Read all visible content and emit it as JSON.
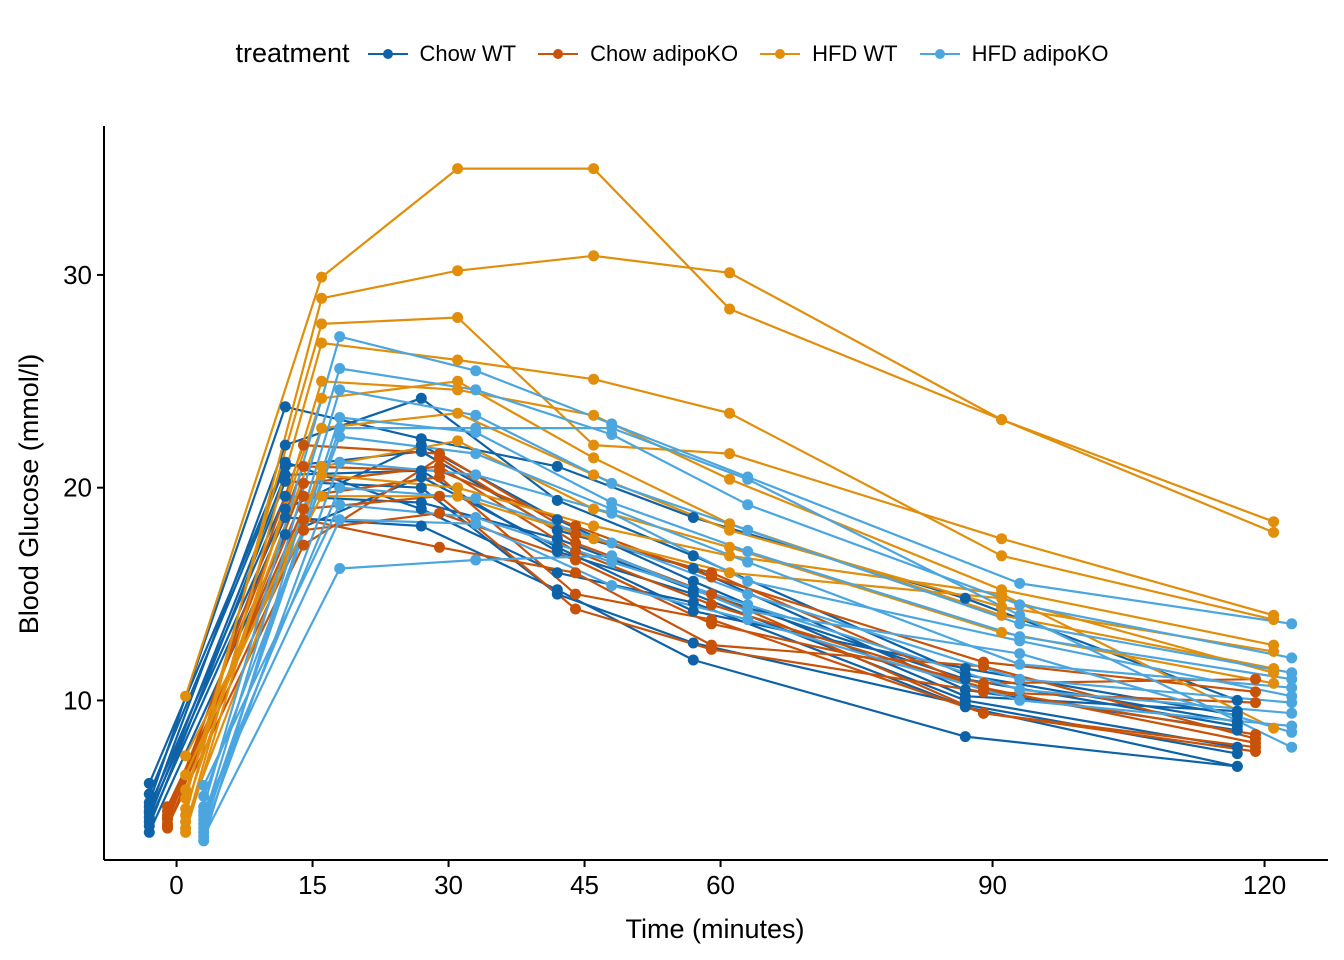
{
  "chart_data": {
    "type": "line",
    "xlabel": "Time (minutes)",
    "ylabel": "Blood Glucose (mmol/l)",
    "x_ticks": [
      0,
      15,
      30,
      45,
      60,
      90,
      120
    ],
    "y_ticks": [
      10,
      20,
      30
    ],
    "xlim": [
      -8,
      127
    ],
    "ylim": [
      2.5,
      37
    ],
    "legend": {
      "title": "treatment",
      "position": "top",
      "entries": [
        {
          "key": "chow_wt",
          "label": "Chow WT",
          "color": "#0E62A8"
        },
        {
          "key": "chow_ko",
          "label": "Chow adipoKO",
          "color": "#C95209"
        },
        {
          "key": "hfd_wt",
          "label": "HFD WT",
          "color": "#E08E0B"
        },
        {
          "key": "hfd_ko",
          "label": "HFD adipoKO",
          "color": "#4BA6E0"
        }
      ]
    },
    "x_dodge": {
      "chow_wt": -3,
      "chow_ko": -1,
      "hfd_wt": 1,
      "hfd_ko": 3
    },
    "time_points": [
      0,
      15,
      30,
      45,
      60,
      90,
      120
    ],
    "series": [
      {
        "group": "chow_wt",
        "values": [
          5.2,
          23.8,
          22.3,
          21.0,
          18.6,
          14.8,
          10.0
        ]
      },
      {
        "group": "chow_wt",
        "values": [
          4.8,
          22.0,
          24.2,
          19.4,
          16.8,
          11.2,
          9.0
        ]
      },
      {
        "group": "chow_wt",
        "values": [
          5.6,
          21.0,
          21.7,
          18.0,
          16.2,
          10.5,
          8.6
        ]
      },
      {
        "group": "chow_wt",
        "values": [
          4.5,
          20.6,
          20.8,
          17.0,
          15.0,
          10.0,
          7.8
        ]
      },
      {
        "group": "chow_wt",
        "values": [
          4.1,
          20.3,
          20.0,
          15.0,
          12.7,
          9.8,
          7.5
        ]
      },
      {
        "group": "chow_wt",
        "values": [
          5.0,
          19.6,
          19.3,
          17.6,
          15.2,
          11.0,
          8.8
        ]
      },
      {
        "group": "chow_wt",
        "values": [
          4.3,
          18.6,
          18.2,
          15.2,
          11.9,
          8.3,
          6.9
        ]
      },
      {
        "group": "chow_wt",
        "values": [
          3.8,
          17.8,
          20.5,
          17.2,
          14.2,
          11.5,
          9.3
        ]
      },
      {
        "group": "chow_wt",
        "values": [
          6.1,
          21.2,
          19.0,
          16.0,
          14.6,
          9.7,
          6.9
        ]
      },
      {
        "group": "chow_wt",
        "values": [
          4.7,
          19.0,
          22.0,
          18.5,
          15.6,
          10.2,
          9.5
        ]
      },
      {
        "group": "chow_ko",
        "values": [
          4.2,
          22.0,
          21.6,
          17.8,
          16.0,
          10.5,
          8.4
        ]
      },
      {
        "group": "chow_ko",
        "values": [
          4.6,
          21.0,
          20.8,
          18.2,
          15.8,
          11.8,
          10.4
        ]
      },
      {
        "group": "chow_ko",
        "values": [
          4.0,
          20.2,
          21.0,
          17.0,
          14.5,
          10.6,
          8.0
        ]
      },
      {
        "group": "chow_ko",
        "values": [
          4.4,
          19.6,
          20.5,
          15.0,
          13.8,
          9.4,
          7.8
        ]
      },
      {
        "group": "chow_ko",
        "values": [
          4.8,
          19.0,
          19.6,
          14.3,
          12.4,
          10.4,
          9.9
        ]
      },
      {
        "group": "chow_ko",
        "values": [
          5.0,
          18.5,
          17.2,
          16.0,
          12.6,
          11.6,
          8.2
        ]
      },
      {
        "group": "chow_ko",
        "values": [
          4.1,
          17.3,
          21.4,
          17.4,
          15.0,
          9.4,
          7.6
        ]
      },
      {
        "group": "chow_ko",
        "values": [
          4.5,
          18.0,
          18.8,
          16.6,
          13.6,
          10.8,
          11.0
        ]
      },
      {
        "group": "hfd_wt",
        "values": [
          10.2,
          29.9,
          35.0,
          35.0,
          28.4,
          23.2,
          18.4
        ]
      },
      {
        "group": "hfd_wt",
        "values": [
          4.6,
          28.9,
          30.2,
          30.9,
          30.1,
          23.2,
          17.9
        ]
      },
      {
        "group": "hfd_wt",
        "values": [
          5.4,
          27.7,
          28.0,
          22.0,
          21.6,
          17.6,
          14.0
        ]
      },
      {
        "group": "hfd_wt",
        "values": [
          4.0,
          26.8,
          26.0,
          25.1,
          23.5,
          16.8,
          13.8
        ]
      },
      {
        "group": "hfd_wt",
        "values": [
          3.8,
          25.0,
          24.6,
          23.4,
          20.4,
          15.2,
          12.6
        ]
      },
      {
        "group": "hfd_wt",
        "values": [
          4.9,
          24.2,
          25.0,
          21.4,
          18.3,
          14.0,
          11.5
        ]
      },
      {
        "group": "hfd_wt",
        "values": [
          5.8,
          22.8,
          23.5,
          20.6,
          18.0,
          14.4,
          12.3
        ]
      },
      {
        "group": "hfd_wt",
        "values": [
          4.3,
          21.0,
          22.2,
          19.0,
          17.2,
          13.2,
          10.8
        ]
      },
      {
        "group": "hfd_wt",
        "values": [
          6.5,
          20.6,
          20.0,
          18.2,
          16.8,
          15.0,
          8.7
        ]
      },
      {
        "group": "hfd_wt",
        "values": [
          7.4,
          19.6,
          19.6,
          17.6,
          16.0,
          14.8,
          11.3
        ]
      },
      {
        "group": "hfd_ko",
        "values": [
          5.0,
          27.1,
          25.5,
          23.0,
          20.5,
          15.5,
          13.6
        ]
      },
      {
        "group": "hfd_ko",
        "values": [
          4.4,
          25.6,
          24.6,
          22.5,
          19.2,
          14.5,
          12.0
        ]
      },
      {
        "group": "hfd_ko",
        "values": [
          3.4,
          24.6,
          23.4,
          20.2,
          18.0,
          13.6,
          11.3
        ]
      },
      {
        "group": "hfd_ko",
        "values": [
          4.0,
          23.3,
          22.6,
          19.3,
          17.0,
          13.0,
          11.0
        ]
      },
      {
        "group": "hfd_ko",
        "values": [
          5.5,
          22.4,
          21.6,
          19.0,
          16.5,
          11.7,
          10.6
        ]
      },
      {
        "group": "hfd_ko",
        "values": [
          3.8,
          21.2,
          20.6,
          18.8,
          15.6,
          12.8,
          10.2
        ]
      },
      {
        "group": "hfd_ko",
        "values": [
          4.6,
          20.0,
          19.5,
          17.4,
          15.0,
          11.0,
          9.9
        ]
      },
      {
        "group": "hfd_ko",
        "values": [
          6.0,
          19.2,
          18.6,
          16.5,
          14.5,
          10.5,
          9.4
        ]
      },
      {
        "group": "hfd_ko",
        "values": [
          4.8,
          18.5,
          18.3,
          15.4,
          13.8,
          10.0,
          8.8
        ]
      },
      {
        "group": "hfd_ko",
        "values": [
          3.6,
          16.2,
          16.6,
          16.8,
          14.2,
          12.2,
          8.5
        ]
      },
      {
        "group": "hfd_ko",
        "values": [
          4.2,
          22.8,
          22.8,
          22.8,
          20.4,
          14.0,
          7.8
        ]
      }
    ]
  }
}
